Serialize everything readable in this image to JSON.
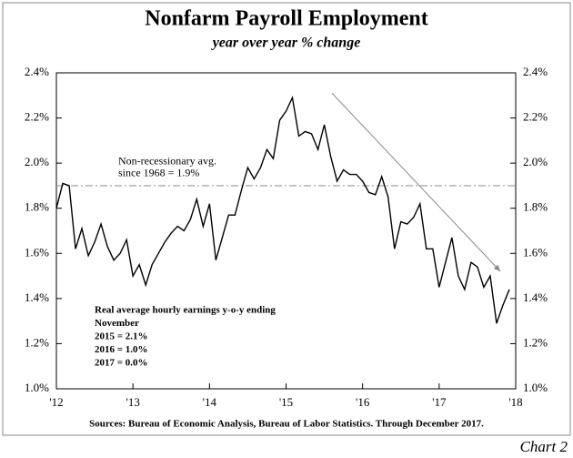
{
  "chart_data": {
    "type": "line",
    "title": "Nonfarm Payroll Employment",
    "subtitle": "year over year % change",
    "source": "Sources: Bureau of Economic Analysis, Bureau of Labor Statistics. Through December 2017.",
    "chart_label": "Chart 2",
    "x": [
      2012,
      2012.083,
      2012.167,
      2012.25,
      2012.333,
      2012.417,
      2012.5,
      2012.583,
      2012.667,
      2012.75,
      2012.833,
      2012.917,
      2013,
      2013.083,
      2013.167,
      2013.25,
      2013.333,
      2013.417,
      2013.5,
      2013.583,
      2013.667,
      2013.75,
      2013.833,
      2013.917,
      2014,
      2014.083,
      2014.167,
      2014.25,
      2014.333,
      2014.417,
      2014.5,
      2014.583,
      2014.667,
      2014.75,
      2014.833,
      2014.917,
      2015,
      2015.083,
      2015.167,
      2015.25,
      2015.333,
      2015.417,
      2015.5,
      2015.583,
      2015.667,
      2015.75,
      2015.833,
      2015.917,
      2016,
      2016.083,
      2016.167,
      2016.25,
      2016.333,
      2016.417,
      2016.5,
      2016.583,
      2016.667,
      2016.75,
      2016.833,
      2016.917,
      2017,
      2017.083,
      2017.167,
      2017.25,
      2017.333,
      2017.417,
      2017.5,
      2017.583,
      2017.667,
      2017.75,
      2017.833,
      2017.917
    ],
    "series": [
      {
        "name": "Nonfarm payroll employment",
        "color": "#000000",
        "values": [
          1.8,
          1.91,
          1.9,
          1.62,
          1.71,
          1.59,
          1.65,
          1.73,
          1.63,
          1.57,
          1.6,
          1.66,
          1.5,
          1.55,
          1.46,
          1.55,
          1.6,
          1.65,
          1.69,
          1.72,
          1.7,
          1.75,
          1.84,
          1.72,
          1.82,
          1.57,
          1.67,
          1.77,
          1.77,
          1.88,
          1.98,
          1.93,
          1.98,
          2.06,
          2.02,
          2.19,
          2.23,
          2.29,
          2.12,
          2.14,
          2.13,
          2.06,
          2.17,
          2.03,
          1.92,
          1.97,
          1.95,
          1.95,
          1.92,
          1.87,
          1.86,
          1.94,
          1.85,
          1.62,
          1.74,
          1.73,
          1.76,
          1.82,
          1.62,
          1.62,
          1.45,
          1.56,
          1.67,
          1.5,
          1.44,
          1.56,
          1.54,
          1.45,
          1.5,
          1.29,
          1.37,
          1.44
        ]
      }
    ],
    "xlim": [
      2012,
      2018
    ],
    "xticks": [
      {
        "value": 2012,
        "label": "'12"
      },
      {
        "value": 2013,
        "label": "'13"
      },
      {
        "value": 2014,
        "label": "'14"
      },
      {
        "value": 2015,
        "label": "'15"
      },
      {
        "value": 2016,
        "label": "'16"
      },
      {
        "value": 2017,
        "label": "'17"
      },
      {
        "value": 2018,
        "label": "'18"
      }
    ],
    "ylim": [
      1.0,
      2.4
    ],
    "yticks": [
      {
        "value": 1.0,
        "label": "1.0%"
      },
      {
        "value": 1.2,
        "label": "1.2%"
      },
      {
        "value": 1.4,
        "label": "1.4%"
      },
      {
        "value": 1.6,
        "label": "1.6%"
      },
      {
        "value": 1.8,
        "label": "1.8%"
      },
      {
        "value": 2.0,
        "label": "2.0%"
      },
      {
        "value": 2.2,
        "label": "2.2%"
      },
      {
        "value": 2.4,
        "label": "2.4%"
      }
    ],
    "y2lim": [
      1.0,
      2.4
    ],
    "y2ticks": [
      {
        "value": 1.0,
        "label": "1.0%"
      },
      {
        "value": 1.2,
        "label": "1.2%"
      },
      {
        "value": 1.4,
        "label": "1.4%"
      },
      {
        "value": 1.6,
        "label": "1.6%"
      },
      {
        "value": 1.8,
        "label": "1.8%"
      },
      {
        "value": 2.0,
        "label": "2.0%"
      },
      {
        "value": 2.2,
        "label": "2.2%"
      },
      {
        "value": 2.4,
        "label": "2.4%"
      }
    ],
    "grid": false,
    "reference_line": {
      "value": 1.9,
      "color": "#999999",
      "label": [
        "Non-recessionary avg.",
        "since 1968 = 1.9%"
      ]
    },
    "arrow": {
      "x": [
        2015.6,
        2017.8
      ],
      "y": [
        2.31,
        1.52
      ],
      "color": "#888888"
    },
    "annotation": [
      "Real average hourly earnings y-o-y ending",
      "November",
      "2015 = 2.1%",
      "2016 = 1.0%",
      "2017 = 0.0%"
    ]
  }
}
